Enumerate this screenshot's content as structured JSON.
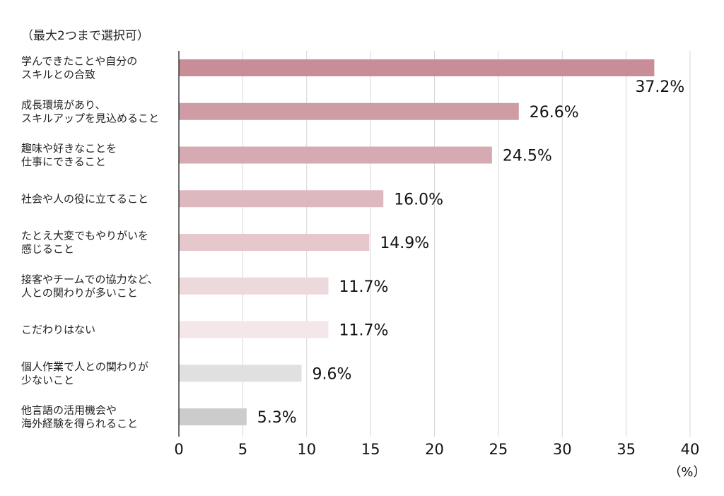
{
  "note": "（最大2つまで選択可）",
  "chart_data": {
    "type": "bar",
    "orientation": "horizontal",
    "categories": [
      [
        "学んできたことや自分の",
        "スキルとの合致"
      ],
      [
        "成長環境があり、",
        "スキルアップを見込めること"
      ],
      [
        "趣味や好きなことを",
        "仕事にできること"
      ],
      [
        "社会や人の役に立てること"
      ],
      [
        "たとえ大変でもやりがいを",
        "感じること"
      ],
      [
        "接客やチームでの協力など、",
        "人との関わりが多いこと"
      ],
      [
        "こだわりはない"
      ],
      [
        "個人作業で人との関わりが",
        "少ないこと"
      ],
      [
        "他言語の活用機会や",
        "海外経験を得られること"
      ]
    ],
    "values": [
      37.2,
      26.6,
      24.5,
      16.0,
      14.9,
      11.7,
      11.7,
      9.6,
      5.3
    ],
    "value_labels": [
      "37.2%",
      "26.6%",
      "24.5%",
      "16.0%",
      "14.9%",
      "11.7%",
      "11.7%",
      "9.6%",
      "5.3%"
    ],
    "colors": [
      "#c98d97",
      "#cf9ca5",
      "#d6aab2",
      "#ddb8be",
      "#e5c7cc",
      "#ecd9dc",
      "#f3e7e9",
      "#e0e0e0",
      "#cccccc"
    ],
    "xlim": [
      0,
      40
    ],
    "xticks": [
      0,
      5,
      10,
      15,
      20,
      25,
      30,
      35,
      40
    ],
    "xlabel": "（%）",
    "ylabel": "",
    "grid": true
  }
}
